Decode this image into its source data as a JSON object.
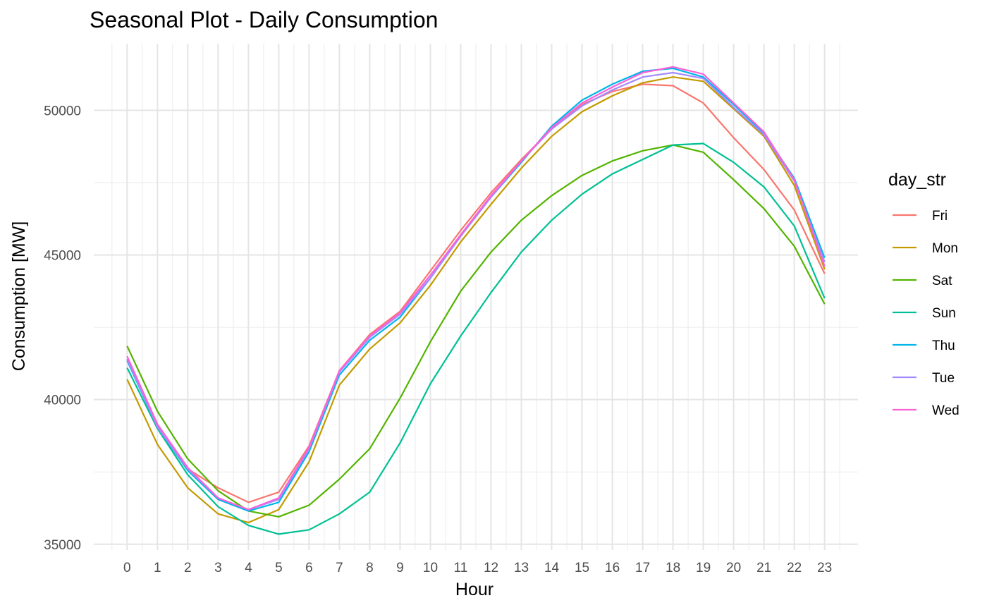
{
  "chart_data": {
    "type": "line",
    "title": "Seasonal Plot - Daily Consumption",
    "xlabel": "Hour",
    "ylabel": "Consumption [MW]",
    "x": [
      0,
      1,
      2,
      3,
      4,
      5,
      6,
      7,
      8,
      9,
      10,
      11,
      12,
      13,
      14,
      15,
      16,
      17,
      18,
      19,
      20,
      21,
      22,
      23
    ],
    "xlim": [
      -1.1,
      24.1
    ],
    "ylim": [
      34800,
      52300
    ],
    "yticks": [
      35000,
      40000,
      45000,
      50000
    ],
    "grid": true,
    "legend": {
      "title": "day_str",
      "position": "right"
    },
    "series": [
      {
        "name": "Fri",
        "color": "#F8766D",
        "values": [
          41400,
          39100,
          37600,
          36950,
          36450,
          36800,
          38400,
          41000,
          42250,
          43050,
          44450,
          45850,
          47150,
          48300,
          49350,
          50200,
          50650,
          50900,
          50850,
          50250,
          49050,
          47950,
          46550,
          44350
        ]
      },
      {
        "name": "Mon",
        "color": "#C49A00",
        "values": [
          40700,
          38450,
          36950,
          36050,
          35750,
          36200,
          37850,
          40500,
          41750,
          42650,
          43950,
          45450,
          46750,
          48000,
          49100,
          49950,
          50500,
          50950,
          51150,
          51000,
          50050,
          49100,
          47400,
          44500
        ]
      },
      {
        "name": "Sat",
        "color": "#53B400",
        "values": [
          41850,
          39600,
          37950,
          36850,
          36150,
          35950,
          36350,
          37250,
          38300,
          40050,
          42000,
          43750,
          45100,
          46200,
          47050,
          47750,
          48250,
          48600,
          48800,
          48550,
          47600,
          46600,
          45300,
          43300
        ]
      },
      {
        "name": "Sun",
        "color": "#00C094",
        "values": [
          41100,
          39000,
          37400,
          36300,
          35650,
          35350,
          35500,
          36050,
          36800,
          38500,
          40550,
          42200,
          43700,
          45100,
          46200,
          47100,
          47800,
          48300,
          48800,
          48850,
          48200,
          47350,
          46000,
          43500
        ]
      },
      {
        "name": "Thu",
        "color": "#00B6EB",
        "values": [
          41350,
          39050,
          37550,
          36550,
          36150,
          36450,
          38200,
          40850,
          42050,
          42850,
          44200,
          45650,
          47000,
          48200,
          49450,
          50350,
          50900,
          51350,
          51450,
          51150,
          50200,
          49200,
          47650,
          44900
        ]
      },
      {
        "name": "Tue",
        "color": "#A58AFF",
        "values": [
          41400,
          39050,
          37600,
          36600,
          36200,
          36550,
          38300,
          40950,
          42150,
          42950,
          44200,
          45650,
          47000,
          48250,
          49350,
          50150,
          50700,
          51150,
          51300,
          51100,
          50100,
          49150,
          47550,
          44750
        ]
      },
      {
        "name": "Wed",
        "color": "#FB61D7",
        "values": [
          41500,
          39150,
          37650,
          36600,
          36200,
          36600,
          38350,
          41000,
          42200,
          43000,
          44300,
          45700,
          47050,
          48250,
          49400,
          50250,
          50800,
          51300,
          51500,
          51250,
          50250,
          49250,
          47600,
          44600
        ]
      }
    ]
  }
}
